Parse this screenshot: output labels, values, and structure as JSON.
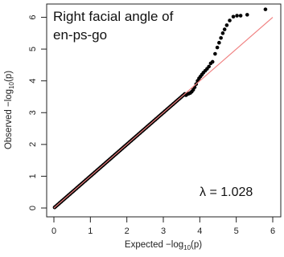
{
  "chart_data": {
    "type": "scatter",
    "title_line1": "Right facial angle of",
    "title_line2": "en-ps-go",
    "annotation": "λ = 1.028",
    "xlabel": {
      "prefix": "Expected  −log",
      "sub": "10",
      "suffix": "(p)"
    },
    "ylabel": {
      "prefix": "Observed  −log",
      "sub": "10",
      "suffix": "(p)"
    },
    "xlim": [
      0,
      6
    ],
    "ylim": [
      0,
      6.4
    ],
    "xticks": [
      "0",
      "1",
      "2",
      "3",
      "4",
      "5",
      "6"
    ],
    "yticks": [
      "0",
      "1",
      "2",
      "3",
      "4",
      "5",
      "6"
    ],
    "reference_line": {
      "slope": 1,
      "intercept": 0,
      "color": "#f08080"
    },
    "point_color": "#000000",
    "series_dense": {
      "x_start": 0.02,
      "x_end": 3.6,
      "slope": 1.0
    },
    "tail_points": [
      [
        3.62,
        3.55
      ],
      [
        3.66,
        3.58
      ],
      [
        3.7,
        3.6
      ],
      [
        3.74,
        3.62
      ],
      [
        3.78,
        3.66
      ],
      [
        3.82,
        3.72
      ],
      [
        3.86,
        3.8
      ],
      [
        3.9,
        3.9
      ],
      [
        3.94,
        4.0
      ],
      [
        3.98,
        4.08
      ],
      [
        4.02,
        4.14
      ],
      [
        4.06,
        4.2
      ],
      [
        4.1,
        4.26
      ],
      [
        4.15,
        4.32
      ],
      [
        4.2,
        4.38
      ],
      [
        4.25,
        4.45
      ],
      [
        4.3,
        4.55
      ],
      [
        4.35,
        4.6
      ],
      [
        4.42,
        4.85
      ],
      [
        4.48,
        5.05
      ],
      [
        4.53,
        5.2
      ],
      [
        4.58,
        5.35
      ],
      [
        4.63,
        5.5
      ],
      [
        4.68,
        5.62
      ],
      [
        4.74,
        5.75
      ],
      [
        4.82,
        5.9
      ],
      [
        4.92,
        6.02
      ],
      [
        5.02,
        6.05
      ],
      [
        5.12,
        6.05
      ],
      [
        5.3,
        6.08
      ],
      [
        5.8,
        6.25
      ]
    ]
  }
}
